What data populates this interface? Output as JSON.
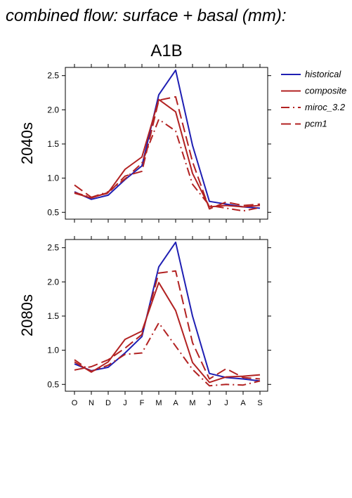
{
  "title": "combined flow: surface + basal (mm):",
  "scenario": "A1B",
  "legend": [
    {
      "name": "historical",
      "color": "#1f1fb3",
      "dash": "solid"
    },
    {
      "name": "composite",
      "color": "#b22222",
      "dash": "solid"
    },
    {
      "name": "miroc_3.2",
      "color": "#b22222",
      "dash": "dashdot"
    },
    {
      "name": "pcm1",
      "color": "#b22222",
      "dash": "dashed"
    }
  ],
  "chart_data": [
    {
      "type": "line",
      "panel_label": "2040s",
      "categories": [
        "O",
        "N",
        "D",
        "J",
        "F",
        "M",
        "A",
        "M",
        "J",
        "J",
        "A",
        "S"
      ],
      "ylim": [
        0.4,
        2.62
      ],
      "yticks": [
        "0.5",
        "1.0",
        "1.5",
        "2.0",
        "2.5"
      ],
      "series": [
        {
          "name": "historical",
          "values": [
            0.8,
            0.69,
            0.75,
            0.98,
            1.18,
            2.22,
            2.58,
            1.48,
            0.66,
            0.62,
            0.58,
            0.56
          ]
        },
        {
          "name": "composite",
          "values": [
            0.78,
            0.71,
            0.79,
            1.13,
            1.31,
            2.15,
            1.97,
            1.07,
            0.58,
            0.6,
            0.58,
            0.6
          ]
        },
        {
          "name": "miroc_3.2",
          "values": [
            0.79,
            0.72,
            0.8,
            0.99,
            1.22,
            1.86,
            1.69,
            0.91,
            0.6,
            0.56,
            0.52,
            0.57
          ]
        },
        {
          "name": "pcm1",
          "values": [
            0.9,
            0.72,
            0.78,
            1.03,
            1.1,
            2.14,
            2.19,
            1.24,
            0.55,
            0.65,
            0.6,
            0.62
          ]
        }
      ]
    },
    {
      "type": "line",
      "panel_label": "2080s",
      "categories": [
        "O",
        "N",
        "D",
        "J",
        "F",
        "M",
        "A",
        "M",
        "J",
        "J",
        "A",
        "S"
      ],
      "ylim": [
        0.4,
        2.62
      ],
      "yticks": [
        "0.5",
        "1.0",
        "1.5",
        "2.0",
        "2.5"
      ],
      "series": [
        {
          "name": "historical",
          "values": [
            0.8,
            0.7,
            0.75,
            0.96,
            1.2,
            2.22,
            2.58,
            1.5,
            0.66,
            0.6,
            0.58,
            0.55
          ]
        },
        {
          "name": "composite",
          "values": [
            0.83,
            0.68,
            0.83,
            1.16,
            1.28,
            1.99,
            1.58,
            0.82,
            0.53,
            0.61,
            0.62,
            0.64
          ]
        },
        {
          "name": "miroc_3.2",
          "values": [
            0.86,
            0.69,
            0.78,
            0.94,
            0.96,
            1.4,
            1.06,
            0.72,
            0.48,
            0.5,
            0.49,
            0.55
          ]
        },
        {
          "name": "pcm1",
          "values": [
            0.71,
            0.76,
            0.86,
            1.03,
            1.23,
            2.13,
            2.16,
            1.11,
            0.58,
            0.73,
            0.6,
            0.58
          ]
        }
      ]
    }
  ]
}
